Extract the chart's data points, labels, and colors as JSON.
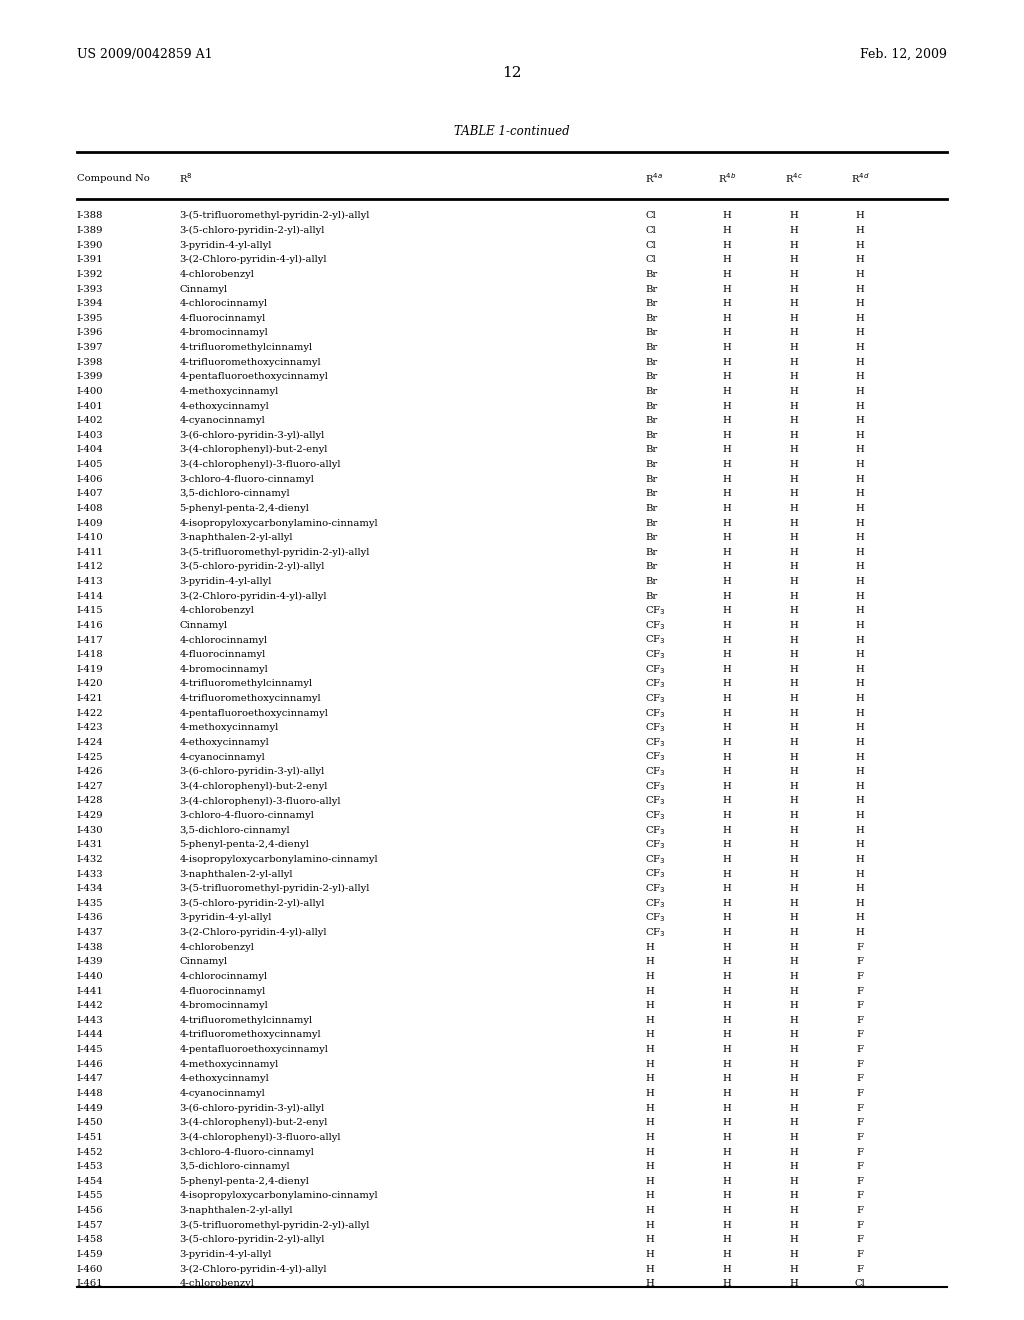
{
  "header_left": "US 2009/0042859 A1",
  "header_right": "Feb. 12, 2009",
  "page_number": "12",
  "table_title": "TABLE 1-continued",
  "rows": [
    [
      "I-388",
      "3-(5-trifluoromethyl-pyridin-2-yl)-allyl",
      "Cl",
      "H",
      "H",
      "H"
    ],
    [
      "I-389",
      "3-(5-chloro-pyridin-2-yl)-allyl",
      "Cl",
      "H",
      "H",
      "H"
    ],
    [
      "I-390",
      "3-pyridin-4-yl-allyl",
      "Cl",
      "H",
      "H",
      "H"
    ],
    [
      "I-391",
      "3-(2-Chloro-pyridin-4-yl)-allyl",
      "Cl",
      "H",
      "H",
      "H"
    ],
    [
      "I-392",
      "4-chlorobenzyl",
      "Br",
      "H",
      "H",
      "H"
    ],
    [
      "I-393",
      "Cinnamyl",
      "Br",
      "H",
      "H",
      "H"
    ],
    [
      "I-394",
      "4-chlorocinnamyl",
      "Br",
      "H",
      "H",
      "H"
    ],
    [
      "I-395",
      "4-fluorocinnamyl",
      "Br",
      "H",
      "H",
      "H"
    ],
    [
      "I-396",
      "4-bromocinnamyl",
      "Br",
      "H",
      "H",
      "H"
    ],
    [
      "I-397",
      "4-trifluoromethylcinnamyl",
      "Br",
      "H",
      "H",
      "H"
    ],
    [
      "I-398",
      "4-trifluoromethoxycinnamyl",
      "Br",
      "H",
      "H",
      "H"
    ],
    [
      "I-399",
      "4-pentafluoroethoxycinnamyl",
      "Br",
      "H",
      "H",
      "H"
    ],
    [
      "I-400",
      "4-methoxycinnamyl",
      "Br",
      "H",
      "H",
      "H"
    ],
    [
      "I-401",
      "4-ethoxycinnamyl",
      "Br",
      "H",
      "H",
      "H"
    ],
    [
      "I-402",
      "4-cyanocinnamyl",
      "Br",
      "H",
      "H",
      "H"
    ],
    [
      "I-403",
      "3-(6-chloro-pyridin-3-yl)-allyl",
      "Br",
      "H",
      "H",
      "H"
    ],
    [
      "I-404",
      "3-(4-chlorophenyl)-but-2-enyl",
      "Br",
      "H",
      "H",
      "H"
    ],
    [
      "I-405",
      "3-(4-chlorophenyl)-3-fluoro-allyl",
      "Br",
      "H",
      "H",
      "H"
    ],
    [
      "I-406",
      "3-chloro-4-fluoro-cinnamyl",
      "Br",
      "H",
      "H",
      "H"
    ],
    [
      "I-407",
      "3,5-dichloro-cinnamyl",
      "Br",
      "H",
      "H",
      "H"
    ],
    [
      "I-408",
      "5-phenyl-penta-2,4-dienyl",
      "Br",
      "H",
      "H",
      "H"
    ],
    [
      "I-409",
      "4-isopropyloxycarbonylamino-cinnamyl",
      "Br",
      "H",
      "H",
      "H"
    ],
    [
      "I-410",
      "3-naphthalen-2-yl-allyl",
      "Br",
      "H",
      "H",
      "H"
    ],
    [
      "I-411",
      "3-(5-trifluoromethyl-pyridin-2-yl)-allyl",
      "Br",
      "H",
      "H",
      "H"
    ],
    [
      "I-412",
      "3-(5-chloro-pyridin-2-yl)-allyl",
      "Br",
      "H",
      "H",
      "H"
    ],
    [
      "I-413",
      "3-pyridin-4-yl-allyl",
      "Br",
      "H",
      "H",
      "H"
    ],
    [
      "I-414",
      "3-(2-Chloro-pyridin-4-yl)-allyl",
      "Br",
      "H",
      "H",
      "H"
    ],
    [
      "I-415",
      "4-chlorobenzyl",
      "CF3",
      "H",
      "H",
      "H"
    ],
    [
      "I-416",
      "Cinnamyl",
      "CF3",
      "H",
      "H",
      "H"
    ],
    [
      "I-417",
      "4-chlorocinnamyl",
      "CF3",
      "H",
      "H",
      "H"
    ],
    [
      "I-418",
      "4-fluorocinnamyl",
      "CF3",
      "H",
      "H",
      "H"
    ],
    [
      "I-419",
      "4-bromocinnamyl",
      "CF3",
      "H",
      "H",
      "H"
    ],
    [
      "I-420",
      "4-trifluoromethylcinnamyl",
      "CF3",
      "H",
      "H",
      "H"
    ],
    [
      "I-421",
      "4-trifluoromethoxycinnamyl",
      "CF3",
      "H",
      "H",
      "H"
    ],
    [
      "I-422",
      "4-pentafluoroethoxycinnamyl",
      "CF3",
      "H",
      "H",
      "H"
    ],
    [
      "I-423",
      "4-methoxycinnamyl",
      "CF3",
      "H",
      "H",
      "H"
    ],
    [
      "I-424",
      "4-ethoxycinnamyl",
      "CF3",
      "H",
      "H",
      "H"
    ],
    [
      "I-425",
      "4-cyanocinnamyl",
      "CF3",
      "H",
      "H",
      "H"
    ],
    [
      "I-426",
      "3-(6-chloro-pyridin-3-yl)-allyl",
      "CF3",
      "H",
      "H",
      "H"
    ],
    [
      "I-427",
      "3-(4-chlorophenyl)-but-2-enyl",
      "CF3",
      "H",
      "H",
      "H"
    ],
    [
      "I-428",
      "3-(4-chlorophenyl)-3-fluoro-allyl",
      "CF3",
      "H",
      "H",
      "H"
    ],
    [
      "I-429",
      "3-chloro-4-fluoro-cinnamyl",
      "CF3",
      "H",
      "H",
      "H"
    ],
    [
      "I-430",
      "3,5-dichloro-cinnamyl",
      "CF3",
      "H",
      "H",
      "H"
    ],
    [
      "I-431",
      "5-phenyl-penta-2,4-dienyl",
      "CF3",
      "H",
      "H",
      "H"
    ],
    [
      "I-432",
      "4-isopropyloxycarbonylamino-cinnamyl",
      "CF3",
      "H",
      "H",
      "H"
    ],
    [
      "I-433",
      "3-naphthalen-2-yl-allyl",
      "CF3",
      "H",
      "H",
      "H"
    ],
    [
      "I-434",
      "3-(5-trifluoromethyl-pyridin-2-yl)-allyl",
      "CF3",
      "H",
      "H",
      "H"
    ],
    [
      "I-435",
      "3-(5-chloro-pyridin-2-yl)-allyl",
      "CF3",
      "H",
      "H",
      "H"
    ],
    [
      "I-436",
      "3-pyridin-4-yl-allyl",
      "CF3",
      "H",
      "H",
      "H"
    ],
    [
      "I-437",
      "3-(2-Chloro-pyridin-4-yl)-allyl",
      "CF3",
      "H",
      "H",
      "H"
    ],
    [
      "I-438",
      "4-chlorobenzyl",
      "H",
      "H",
      "H",
      "F"
    ],
    [
      "I-439",
      "Cinnamyl",
      "H",
      "H",
      "H",
      "F"
    ],
    [
      "I-440",
      "4-chlorocinnamyl",
      "H",
      "H",
      "H",
      "F"
    ],
    [
      "I-441",
      "4-fluorocinnamyl",
      "H",
      "H",
      "H",
      "F"
    ],
    [
      "I-442",
      "4-bromocinnamyl",
      "H",
      "H",
      "H",
      "F"
    ],
    [
      "I-443",
      "4-trifluoromethylcinnamyl",
      "H",
      "H",
      "H",
      "F"
    ],
    [
      "I-444",
      "4-trifluoromethoxycinnamyl",
      "H",
      "H",
      "H",
      "F"
    ],
    [
      "I-445",
      "4-pentafluoroethoxycinnamyl",
      "H",
      "H",
      "H",
      "F"
    ],
    [
      "I-446",
      "4-methoxycinnamyl",
      "H",
      "H",
      "H",
      "F"
    ],
    [
      "I-447",
      "4-ethoxycinnamyl",
      "H",
      "H",
      "H",
      "F"
    ],
    [
      "I-448",
      "4-cyanocinnamyl",
      "H",
      "H",
      "H",
      "F"
    ],
    [
      "I-449",
      "3-(6-chloro-pyridin-3-yl)-allyl",
      "H",
      "H",
      "H",
      "F"
    ],
    [
      "I-450",
      "3-(4-chlorophenyl)-but-2-enyl",
      "H",
      "H",
      "H",
      "F"
    ],
    [
      "I-451",
      "3-(4-chlorophenyl)-3-fluoro-allyl",
      "H",
      "H",
      "H",
      "F"
    ],
    [
      "I-452",
      "3-chloro-4-fluoro-cinnamyl",
      "H",
      "H",
      "H",
      "F"
    ],
    [
      "I-453",
      "3,5-dichloro-cinnamyl",
      "H",
      "H",
      "H",
      "F"
    ],
    [
      "I-454",
      "5-phenyl-penta-2,4-dienyl",
      "H",
      "H",
      "H",
      "F"
    ],
    [
      "I-455",
      "4-isopropyloxycarbonylamino-cinnamyl",
      "H",
      "H",
      "H",
      "F"
    ],
    [
      "I-456",
      "3-naphthalen-2-yl-allyl",
      "H",
      "H",
      "H",
      "F"
    ],
    [
      "I-457",
      "3-(5-trifluoromethyl-pyridin-2-yl)-allyl",
      "H",
      "H",
      "H",
      "F"
    ],
    [
      "I-458",
      "3-(5-chloro-pyridin-2-yl)-allyl",
      "H",
      "H",
      "H",
      "F"
    ],
    [
      "I-459",
      "3-pyridin-4-yl-allyl",
      "H",
      "H",
      "H",
      "F"
    ],
    [
      "I-460",
      "3-(2-Chloro-pyridin-4-yl)-allyl",
      "H",
      "H",
      "H",
      "F"
    ],
    [
      "I-461",
      "4-chlorobenzyl",
      "H",
      "H",
      "H",
      "Cl"
    ]
  ],
  "background_color": "#ffffff",
  "text_color": "#000000",
  "font_size": 7.2,
  "header_font_size": 9.0,
  "title_font_size": 8.5
}
